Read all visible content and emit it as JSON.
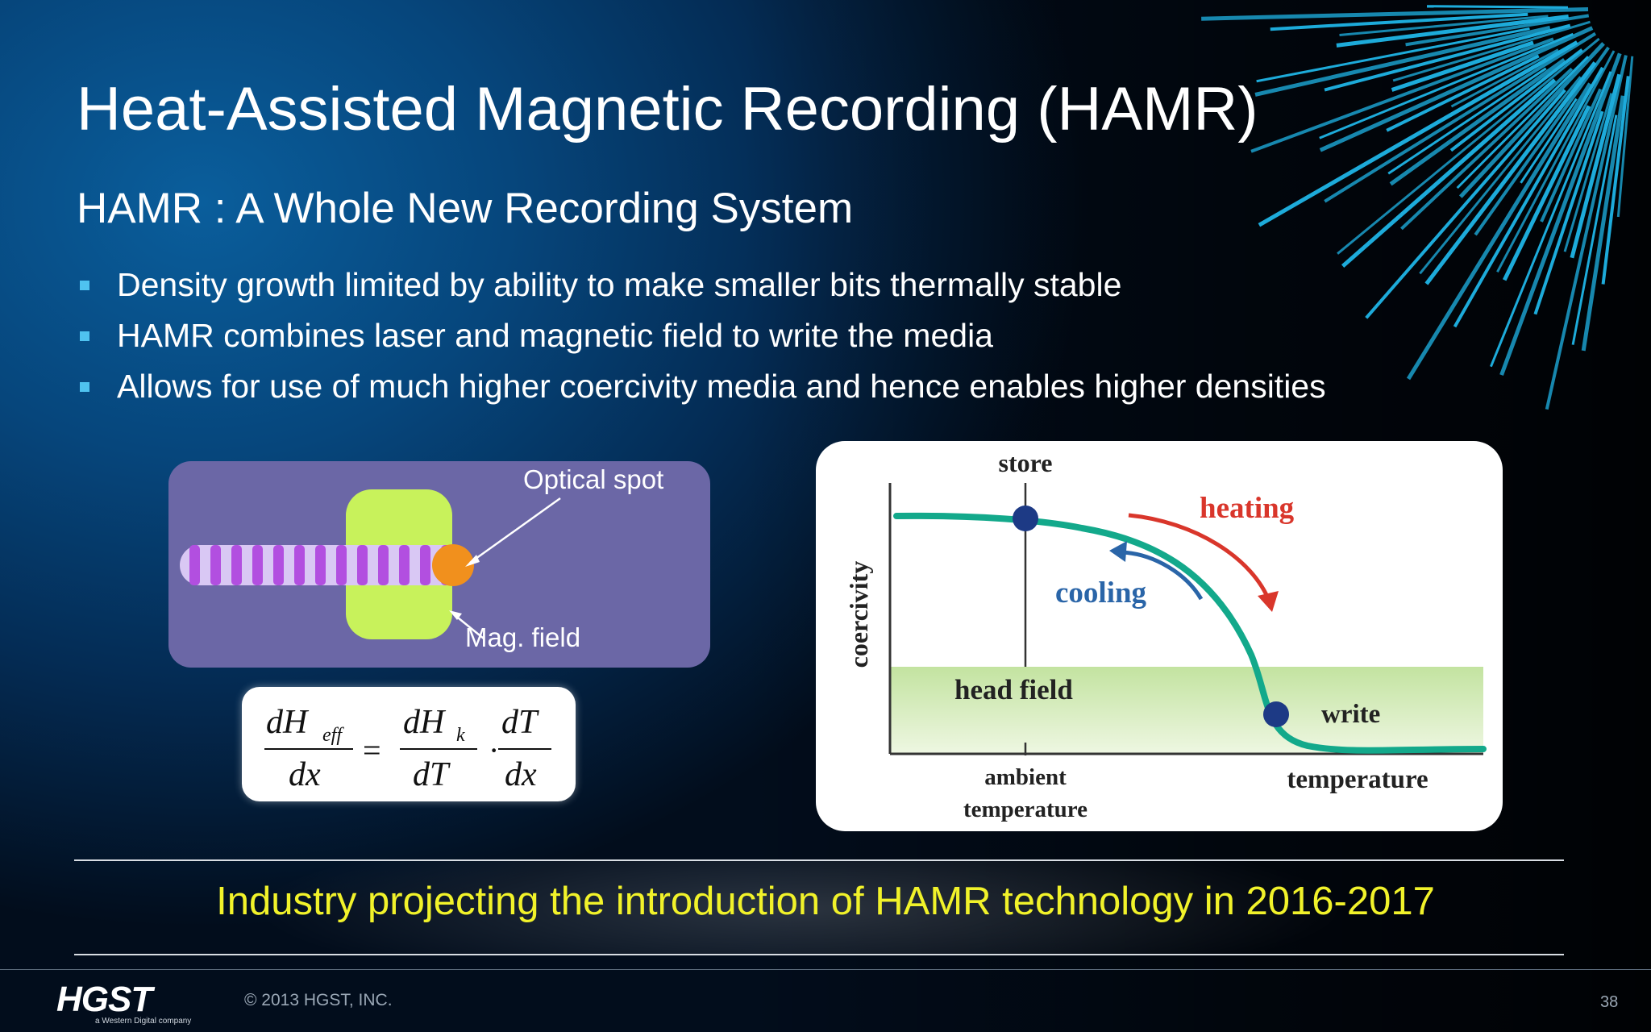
{
  "slide": {
    "title": "Heat-Assisted Magnetic Recording (HAMR)",
    "subtitle": "HAMR : A Whole New Recording System",
    "bullets": [
      "Density growth limited by ability to make smaller bits thermally stable",
      "HAMR combines laser and magnetic field to write the media",
      "Allows for use of much higher coercivity media and hence enables higher densities"
    ],
    "banner": "Industry projecting the introduction of HAMR technology in 2016-2017"
  },
  "diagram_left": {
    "optical_spot_label": "Optical spot",
    "mag_field_label": "Mag. field"
  },
  "formula": {
    "lhs_num": "dH",
    "lhs_sub": "eff",
    "lhs_den": "dx",
    "eq": "=",
    "mid_num": "dH",
    "mid_sub": "k",
    "mid_den": "dT",
    "dot": "·",
    "rhs_num": "dT",
    "rhs_den": "dx"
  },
  "diagram_right": {
    "store_label": "store",
    "heating_label": "heating",
    "cooling_label": "cooling",
    "coercivity_label": "coercivity",
    "head_field_label": "head field",
    "write_label": "write",
    "ambient_label_1": "ambient",
    "ambient_label_2": "temperature",
    "temperature_label": "temperature"
  },
  "footer": {
    "logo": "HGST",
    "logo_tagline": "a Western Digital company",
    "copyright": "© 2013 HGST, INC.",
    "page_number": "38"
  },
  "colors": {
    "bullet_square": "#4fc3f0",
    "banner_text": "#f1f22a",
    "curve": "#13a98b",
    "heating": "#d9362b",
    "cooling": "#2a65a8",
    "head_field_band": "#cde9b0",
    "burst": "#1fb4e6"
  }
}
